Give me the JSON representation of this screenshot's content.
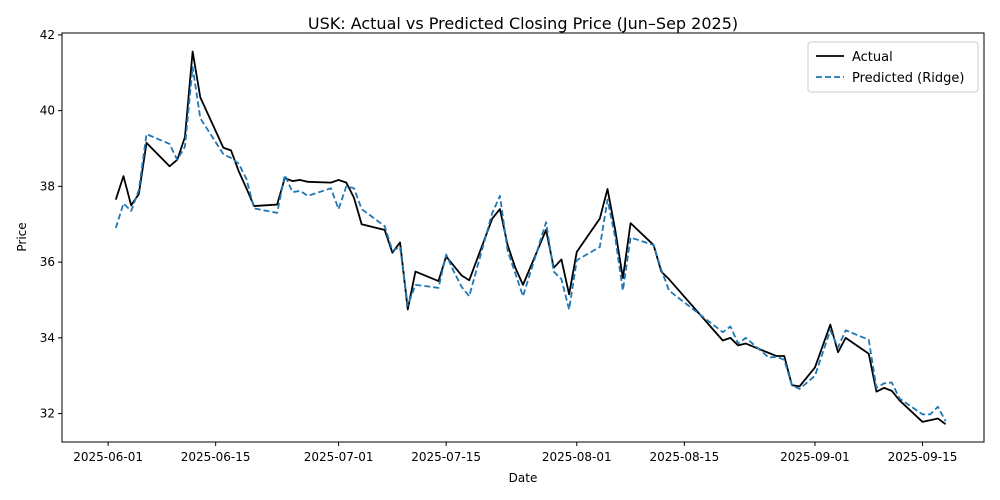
{
  "chart_data": {
    "type": "line",
    "title": "USK: Actual vs Predicted Closing Price (Jun–Sep 2025)",
    "xlabel": "Date",
    "ylabel": "Price",
    "xlim": [
      "2025-05-26",
      "2025-09-23"
    ],
    "ylim": [
      31.25,
      42.05
    ],
    "x_ticks": [
      "2025-06-01",
      "2025-06-15",
      "2025-07-01",
      "2025-07-15",
      "2025-08-01",
      "2025-08-15",
      "2025-09-01",
      "2025-09-15"
    ],
    "y_ticks": [
      32,
      34,
      36,
      38,
      40,
      42
    ],
    "grid": false,
    "legend": "top-right",
    "colors": {
      "actual": "#000000",
      "predicted": "#1f77b4"
    },
    "series": [
      {
        "name": "Actual",
        "style": "solid",
        "points": [
          [
            "2025-06-02",
            37.65
          ],
          [
            "2025-06-03",
            38.27
          ],
          [
            "2025-06-04",
            37.5
          ],
          [
            "2025-06-05",
            37.8
          ],
          [
            "2025-06-06",
            39.15
          ],
          [
            "2025-06-09",
            38.53
          ],
          [
            "2025-06-10",
            38.7
          ],
          [
            "2025-06-11",
            39.3
          ],
          [
            "2025-06-12",
            41.56
          ],
          [
            "2025-06-13",
            40.35
          ],
          [
            "2025-06-16",
            39.02
          ],
          [
            "2025-06-17",
            38.95
          ],
          [
            "2025-06-18",
            38.4
          ],
          [
            "2025-06-19",
            37.95
          ],
          [
            "2025-06-20",
            37.48
          ],
          [
            "2025-06-23",
            37.52
          ],
          [
            "2025-06-24",
            38.22
          ],
          [
            "2025-06-25",
            38.14
          ],
          [
            "2025-06-26",
            38.17
          ],
          [
            "2025-06-27",
            38.12
          ],
          [
            "2025-06-30",
            38.1
          ],
          [
            "2025-07-01",
            38.17
          ],
          [
            "2025-07-02",
            38.1
          ],
          [
            "2025-07-03",
            37.7
          ],
          [
            "2025-07-04",
            37.0
          ],
          [
            "2025-07-07",
            36.85
          ],
          [
            "2025-07-08",
            36.25
          ],
          [
            "2025-07-09",
            36.52
          ],
          [
            "2025-07-10",
            34.75
          ],
          [
            "2025-07-11",
            35.75
          ],
          [
            "2025-07-14",
            35.5
          ],
          [
            "2025-07-15",
            36.15
          ],
          [
            "2025-07-16",
            35.9
          ],
          [
            "2025-07-17",
            35.65
          ],
          [
            "2025-07-18",
            35.52
          ],
          [
            "2025-07-21",
            37.15
          ],
          [
            "2025-07-22",
            37.4
          ],
          [
            "2025-07-23",
            36.45
          ],
          [
            "2025-07-24",
            35.85
          ],
          [
            "2025-07-25",
            35.4
          ],
          [
            "2025-07-28",
            36.85
          ],
          [
            "2025-07-29",
            35.85
          ],
          [
            "2025-07-30",
            36.07
          ],
          [
            "2025-07-31",
            35.15
          ],
          [
            "2025-08-01",
            36.27
          ],
          [
            "2025-08-04",
            37.15
          ],
          [
            "2025-08-05",
            37.93
          ],
          [
            "2025-08-06",
            36.85
          ],
          [
            "2025-08-07",
            35.58
          ],
          [
            "2025-08-08",
            37.03
          ],
          [
            "2025-08-11",
            36.45
          ],
          [
            "2025-08-12",
            35.75
          ],
          [
            "2025-08-13",
            35.55
          ],
          [
            "2025-08-20",
            33.93
          ],
          [
            "2025-08-21",
            34.0
          ],
          [
            "2025-08-22",
            33.8
          ],
          [
            "2025-08-23",
            33.85
          ],
          [
            "2025-08-26",
            33.6
          ],
          [
            "2025-08-27",
            33.52
          ],
          [
            "2025-08-28",
            33.52
          ],
          [
            "2025-08-29",
            32.75
          ],
          [
            "2025-08-30",
            32.72
          ],
          [
            "2025-09-01",
            33.22
          ],
          [
            "2025-09-03",
            34.35
          ],
          [
            "2025-09-04",
            33.62
          ],
          [
            "2025-09-05",
            34.0
          ],
          [
            "2025-09-08",
            33.58
          ],
          [
            "2025-09-09",
            32.58
          ],
          [
            "2025-09-10",
            32.68
          ],
          [
            "2025-09-11",
            32.6
          ],
          [
            "2025-09-12",
            32.35
          ],
          [
            "2025-09-15",
            31.78
          ],
          [
            "2025-09-17",
            31.87
          ],
          [
            "2025-09-18",
            31.72
          ]
        ]
      },
      {
        "name": "Predicted (Ridge)",
        "style": "dashed",
        "points": [
          [
            "2025-06-02",
            36.9
          ],
          [
            "2025-06-03",
            37.55
          ],
          [
            "2025-06-04",
            37.35
          ],
          [
            "2025-06-05",
            37.9
          ],
          [
            "2025-06-06",
            39.38
          ],
          [
            "2025-06-09",
            39.12
          ],
          [
            "2025-06-10",
            38.7
          ],
          [
            "2025-06-11",
            39.05
          ],
          [
            "2025-06-12",
            41.15
          ],
          [
            "2025-06-13",
            39.8
          ],
          [
            "2025-06-16",
            38.85
          ],
          [
            "2025-06-17",
            38.75
          ],
          [
            "2025-06-18",
            38.6
          ],
          [
            "2025-06-19",
            38.2
          ],
          [
            "2025-06-20",
            37.42
          ],
          [
            "2025-06-23",
            37.3
          ],
          [
            "2025-06-24",
            38.3
          ],
          [
            "2025-06-25",
            37.85
          ],
          [
            "2025-06-26",
            37.88
          ],
          [
            "2025-06-27",
            37.75
          ],
          [
            "2025-06-30",
            37.95
          ],
          [
            "2025-07-01",
            37.4
          ],
          [
            "2025-07-02",
            38.0
          ],
          [
            "2025-07-03",
            37.95
          ],
          [
            "2025-07-04",
            37.4
          ],
          [
            "2025-07-07",
            36.95
          ],
          [
            "2025-07-08",
            36.3
          ],
          [
            "2025-07-09",
            36.4
          ],
          [
            "2025-07-10",
            34.85
          ],
          [
            "2025-07-11",
            35.4
          ],
          [
            "2025-07-14",
            35.32
          ],
          [
            "2025-07-15",
            36.2
          ],
          [
            "2025-07-16",
            35.75
          ],
          [
            "2025-07-17",
            35.35
          ],
          [
            "2025-07-18",
            35.1
          ],
          [
            "2025-07-21",
            37.3
          ],
          [
            "2025-07-22",
            37.75
          ],
          [
            "2025-07-23",
            36.3
          ],
          [
            "2025-07-24",
            35.7
          ],
          [
            "2025-07-25",
            35.1
          ],
          [
            "2025-07-28",
            37.05
          ],
          [
            "2025-07-29",
            35.75
          ],
          [
            "2025-07-30",
            35.55
          ],
          [
            "2025-07-31",
            34.75
          ],
          [
            "2025-08-01",
            36.05
          ],
          [
            "2025-08-04",
            36.4
          ],
          [
            "2025-08-05",
            37.65
          ],
          [
            "2025-08-06",
            36.65
          ],
          [
            "2025-08-07",
            35.25
          ],
          [
            "2025-08-08",
            36.65
          ],
          [
            "2025-08-11",
            36.45
          ],
          [
            "2025-08-12",
            35.8
          ],
          [
            "2025-08-13",
            35.25
          ],
          [
            "2025-08-20",
            34.15
          ],
          [
            "2025-08-21",
            34.3
          ],
          [
            "2025-08-22",
            33.85
          ],
          [
            "2025-08-23",
            34.0
          ],
          [
            "2025-08-26",
            33.48
          ],
          [
            "2025-08-27",
            33.5
          ],
          [
            "2025-08-28",
            33.42
          ],
          [
            "2025-08-29",
            32.75
          ],
          [
            "2025-08-30",
            32.65
          ],
          [
            "2025-09-01",
            33.0
          ],
          [
            "2025-09-03",
            34.2
          ],
          [
            "2025-09-04",
            33.75
          ],
          [
            "2025-09-05",
            34.2
          ],
          [
            "2025-09-08",
            33.95
          ],
          [
            "2025-09-09",
            32.68
          ],
          [
            "2025-09-10",
            32.8
          ],
          [
            "2025-09-11",
            32.82
          ],
          [
            "2025-09-12",
            32.4
          ],
          [
            "2025-09-15",
            31.98
          ],
          [
            "2025-09-16",
            31.98
          ],
          [
            "2025-09-17",
            32.18
          ],
          [
            "2025-09-18",
            31.8
          ]
        ]
      }
    ]
  }
}
